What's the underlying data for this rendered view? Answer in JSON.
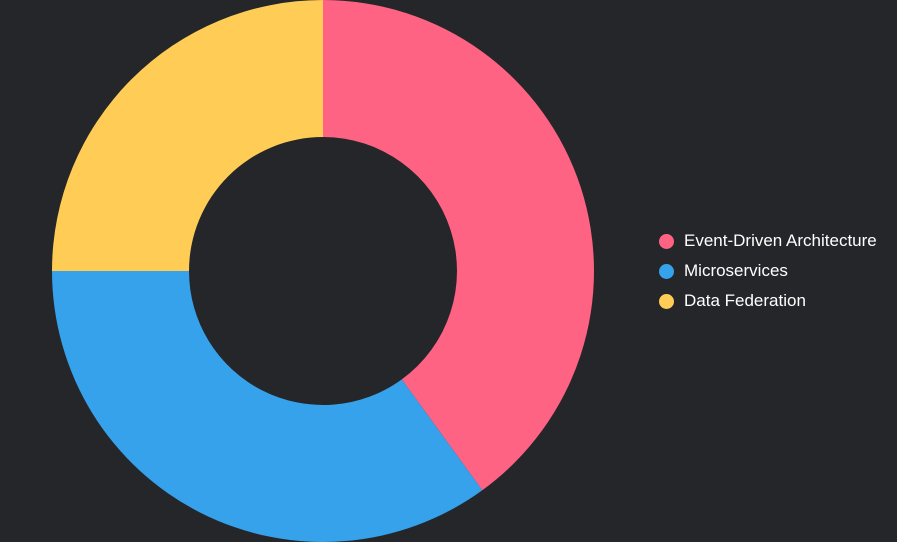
{
  "chart_data": {
    "type": "pie",
    "variant": "doughnut",
    "categories": [
      "Event-Driven Architecture",
      "Microservices",
      "Data Federation"
    ],
    "values": [
      40,
      35,
      25
    ],
    "colors": [
      "#ff6384",
      "#36a2eb",
      "#ffcd56"
    ],
    "background": "#25262a",
    "legend_position": "right",
    "start_angle": "top",
    "direction": "clockwise"
  }
}
